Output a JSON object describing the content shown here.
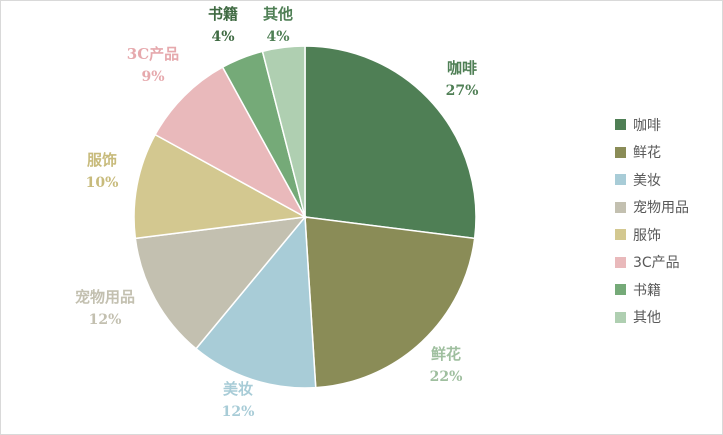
{
  "chart_data": {
    "type": "pie",
    "title": "",
    "legend_position": "right",
    "slices": [
      {
        "name": "咖啡",
        "value": 27,
        "label": "27%",
        "color": "#4f7f55",
        "label_color": "#4f7f55"
      },
      {
        "name": "鲜花",
        "value": 22,
        "label": "22%",
        "color": "#8a8c57",
        "label_color": "#9fbf9f"
      },
      {
        "name": "美妆",
        "value": 12,
        "label": "12%",
        "color": "#a8ccd7",
        "label_color": "#a8ccd7"
      },
      {
        "name": "宠物用品",
        "value": 12,
        "label": "12%",
        "color": "#c3c0b0",
        "label_color": "#c3c0b0"
      },
      {
        "name": "服饰",
        "value": 10,
        "label": "10%",
        "color": "#d3c890",
        "label_color": "#c8bb7c"
      },
      {
        "name": "3C产品",
        "value": 9,
        "label": "9%",
        "color": "#e9b9bb",
        "label_color": "#e6a9ad"
      },
      {
        "name": "书籍",
        "value": 4,
        "label": "4%",
        "color": "#75aa78",
        "label_color": "#3f6a42"
      },
      {
        "name": "其他",
        "value": 4,
        "label": "4%",
        "color": "#afcfb1",
        "label_color": "#4f7f55"
      }
    ]
  }
}
